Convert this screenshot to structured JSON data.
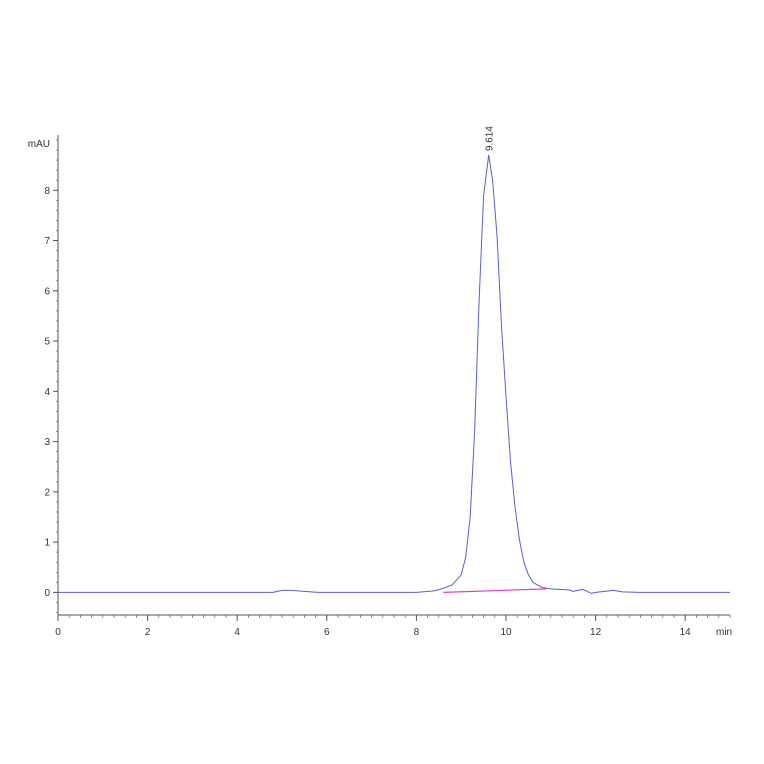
{
  "chart_data": {
    "type": "line",
    "title": "",
    "xlabel": "min",
    "ylabel": "mAU",
    "xlim": [
      0,
      15
    ],
    "ylim": [
      -0.45,
      9.1
    ],
    "x_ticks": [
      0,
      2,
      4,
      6,
      8,
      10,
      12,
      14
    ],
    "x_tick_labels": [
      "0",
      "2",
      "4",
      "6",
      "8",
      "10",
      "12",
      "14"
    ],
    "y_ticks": [
      0,
      1,
      2,
      3,
      4,
      5,
      6,
      7,
      8
    ],
    "y_tick_labels": [
      "0",
      "1",
      "2",
      "3",
      "4",
      "5",
      "6",
      "7",
      "8"
    ],
    "grid": false,
    "legend": "none",
    "series": [
      {
        "role": "signal",
        "color": "#5a5fc8",
        "x": [
          0,
          1,
          2,
          3,
          4,
          4.8,
          5.0,
          5.2,
          5.5,
          5.8,
          6,
          7,
          8,
          8.4,
          8.6,
          8.8,
          9.0,
          9.1,
          9.2,
          9.3,
          9.4,
          9.5,
          9.614,
          9.7,
          9.8,
          9.9,
          10.0,
          10.1,
          10.2,
          10.3,
          10.4,
          10.5,
          10.6,
          10.8,
          11.0,
          11.2,
          11.4,
          11.5,
          11.7,
          11.8,
          11.9,
          12.0,
          12.2,
          12.4,
          12.6,
          13,
          14,
          15
        ],
        "y": [
          0.0,
          0.0,
          0.0,
          0.0,
          0.0,
          0.0,
          0.04,
          0.04,
          0.02,
          0.0,
          0.0,
          0.0,
          0.0,
          0.03,
          0.08,
          0.15,
          0.35,
          0.7,
          1.5,
          3.2,
          5.8,
          7.9,
          8.7,
          8.2,
          7.1,
          5.3,
          3.9,
          2.6,
          1.7,
          1.05,
          0.6,
          0.35,
          0.2,
          0.1,
          0.07,
          0.06,
          0.05,
          0.02,
          0.06,
          0.03,
          -0.02,
          0.0,
          0.02,
          0.04,
          0.01,
          0.0,
          0.0,
          0.0
        ]
      },
      {
        "role": "baseline",
        "color": "#d63fc6",
        "x": [
          8.6,
          10.9
        ],
        "y": [
          0.0,
          0.07
        ]
      }
    ],
    "annotations": [
      {
        "text": "9.614",
        "x": 9.614,
        "y": 8.7
      }
    ]
  }
}
